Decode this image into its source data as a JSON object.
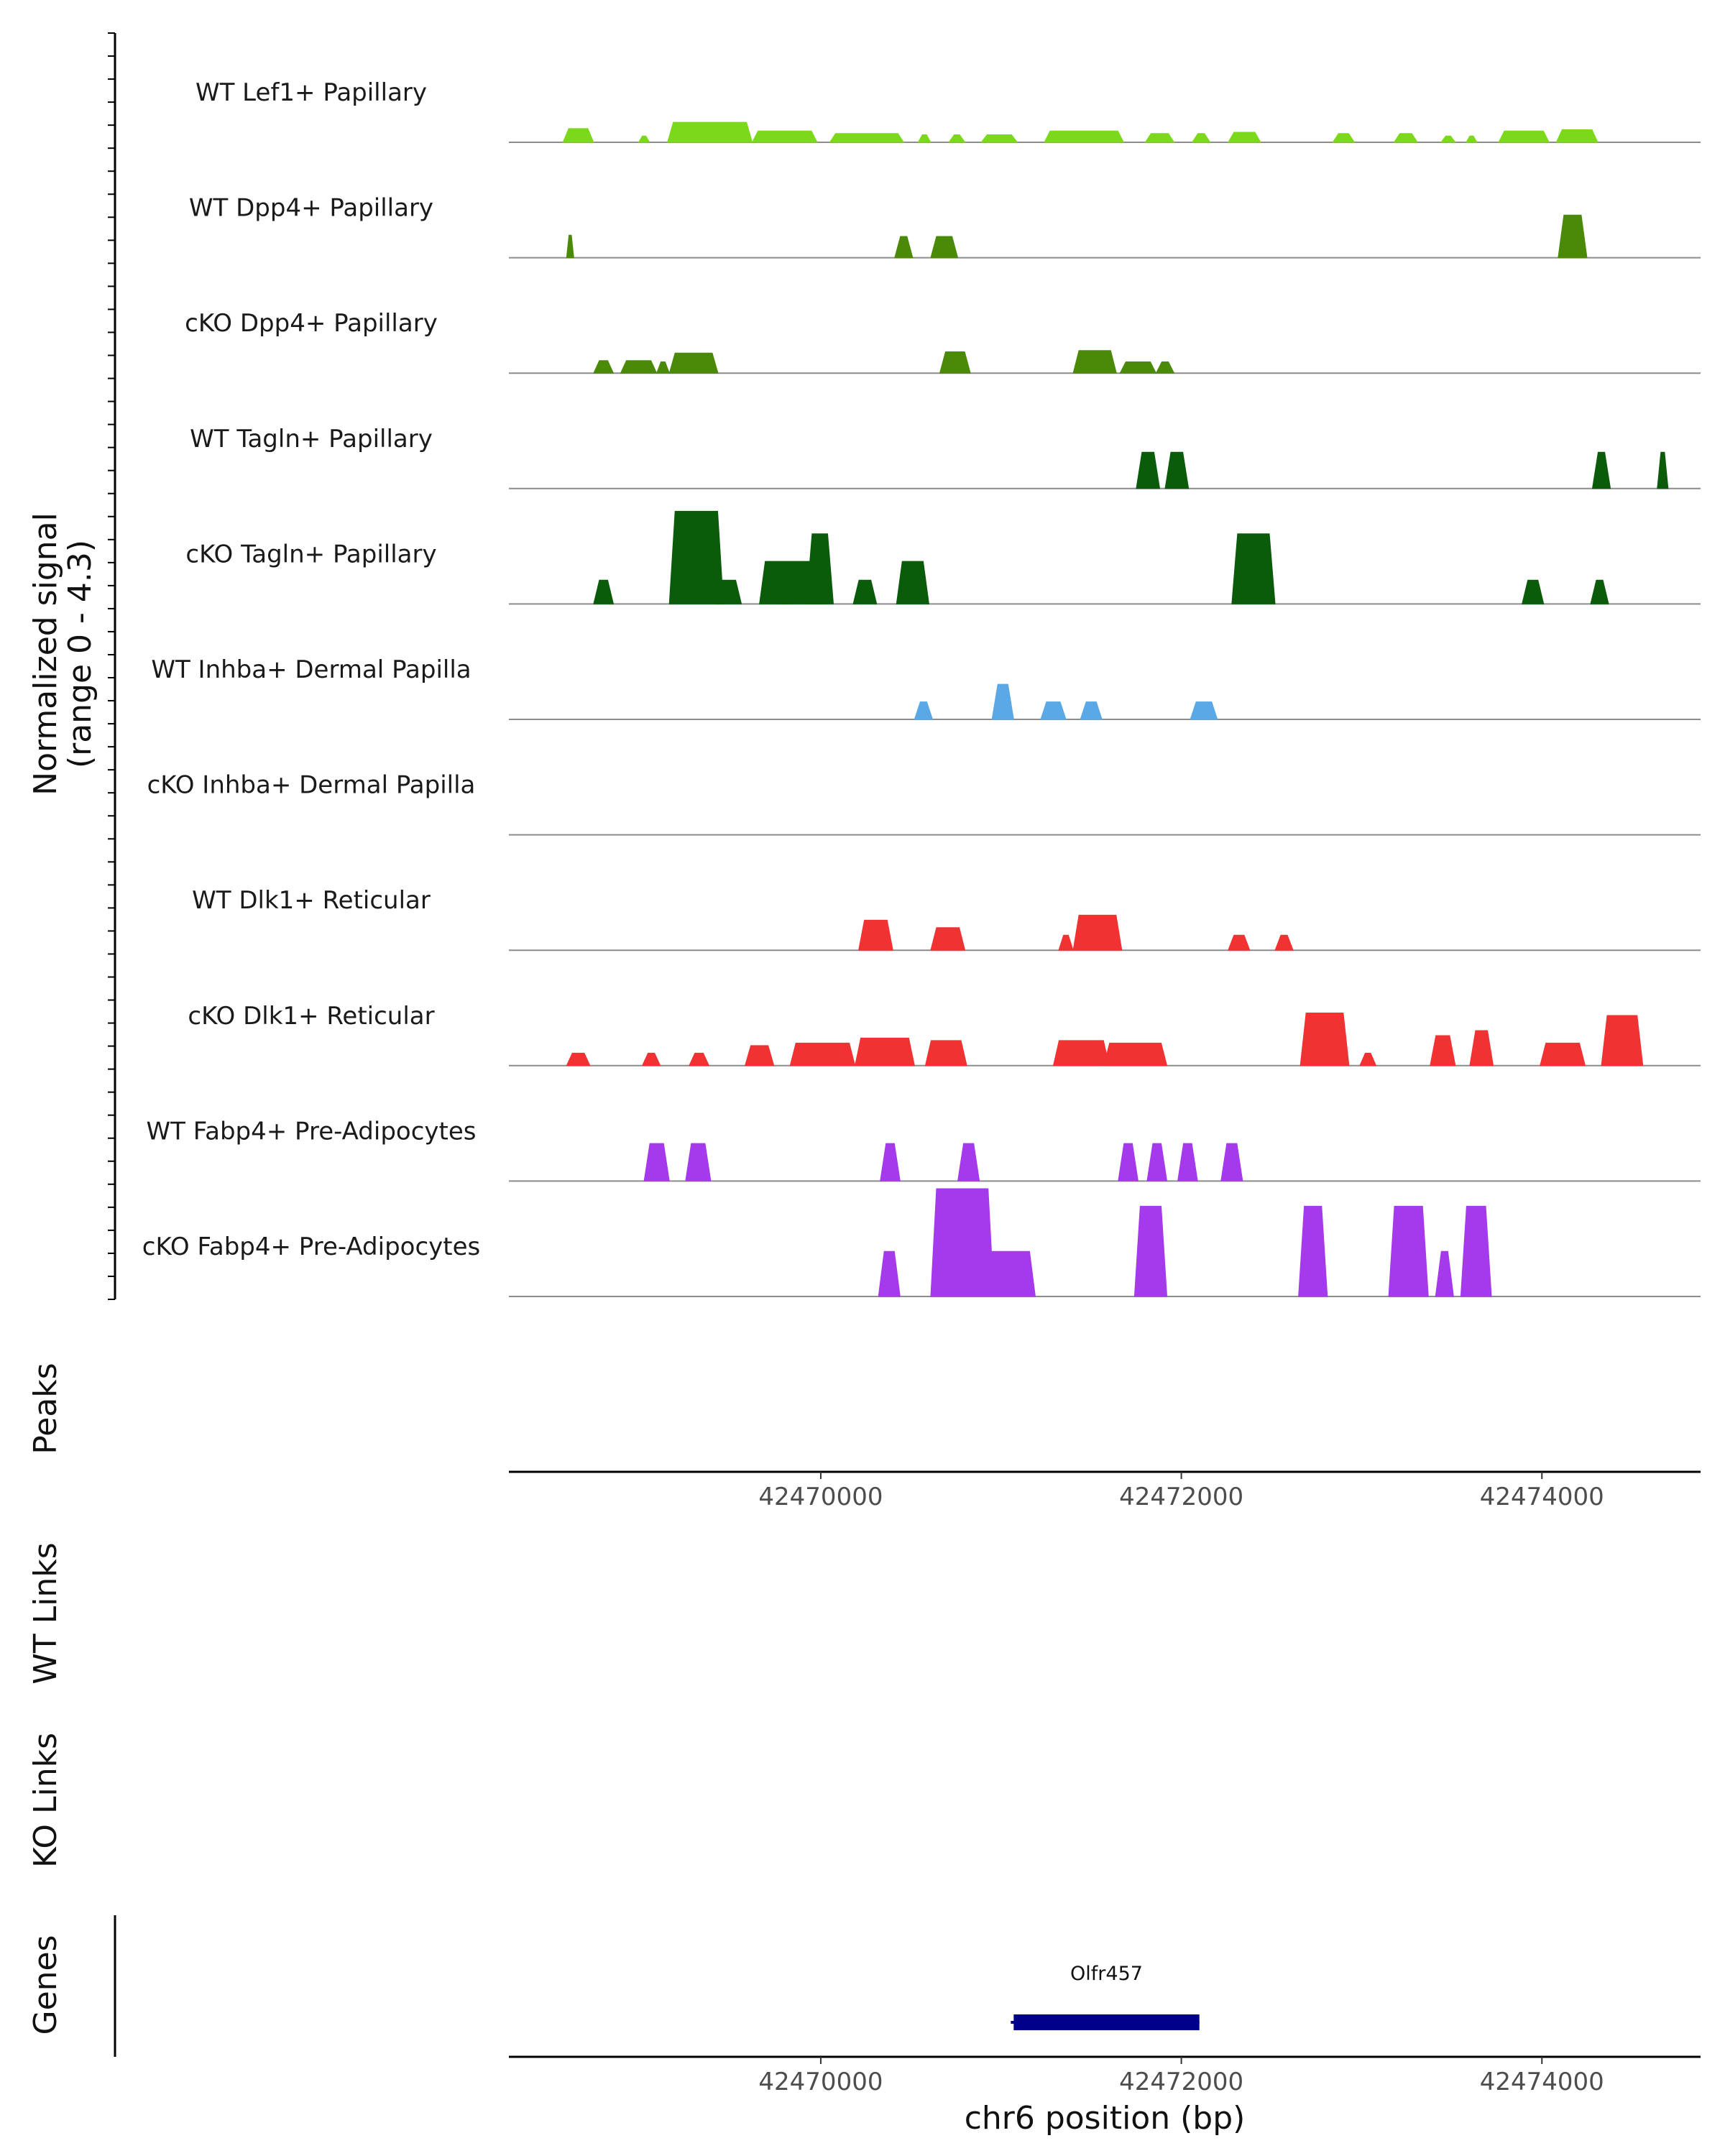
{
  "chart_data": {
    "type": "area",
    "title": "",
    "ylabel_line1": "Normalized signal",
    "ylabel_line2": "(range 0 - 4.3)",
    "y_range": [
      0,
      4.3
    ],
    "xlabel": "chr6 position (bp)",
    "x_range": [
      42468270,
      42474880
    ],
    "x_ticks": [
      42470000,
      42472000,
      42474000
    ],
    "x_tick_labels": [
      "42470000",
      "42472000",
      "42474000"
    ],
    "series": [
      {
        "name": "WT Lef1+ Papillary",
        "color": "#7cd81a",
        "peaks": [
          [
            42468570,
            42468740,
            0.55
          ],
          [
            42468990,
            42469050,
            0.25
          ],
          [
            42469150,
            42469620,
            0.8
          ],
          [
            42469620,
            42469980,
            0.45
          ],
          [
            42470050,
            42470460,
            0.35
          ],
          [
            42470540,
            42470610,
            0.3
          ],
          [
            42470710,
            42470800,
            0.3
          ],
          [
            42470890,
            42471090,
            0.3
          ],
          [
            42471240,
            42471680,
            0.45
          ],
          [
            42471800,
            42471960,
            0.35
          ],
          [
            42472060,
            42472160,
            0.35
          ],
          [
            42472260,
            42472440,
            0.4
          ],
          [
            42472840,
            42472960,
            0.35
          ],
          [
            42473180,
            42473310,
            0.35
          ],
          [
            42473440,
            42473520,
            0.25
          ],
          [
            42473580,
            42473640,
            0.25
          ],
          [
            42473760,
            42474040,
            0.45
          ],
          [
            42474080,
            42474310,
            0.5
          ]
        ]
      },
      {
        "name": "WT Dpp4+ Papillary",
        "color": "#4a8a08",
        "peaks": [
          [
            42468590,
            42468630,
            0.9
          ],
          [
            42470410,
            42470510,
            0.85
          ],
          [
            42470610,
            42470760,
            0.85
          ],
          [
            42474090,
            42474250,
            1.7
          ]
        ]
      },
      {
        "name": "cKO Dpp4+ Papillary",
        "color": "#4a8a08",
        "peaks": [
          [
            42468740,
            42468850,
            0.5
          ],
          [
            42468890,
            42469090,
            0.5
          ],
          [
            42469090,
            42469160,
            0.45
          ],
          [
            42469160,
            42469430,
            0.8
          ],
          [
            42470660,
            42470830,
            0.85
          ],
          [
            42471400,
            42471640,
            0.9
          ],
          [
            42471660,
            42471860,
            0.45
          ],
          [
            42471860,
            42471960,
            0.45
          ]
        ]
      },
      {
        "name": "WT Tagln+ Papillary",
        "color": "#0a5c0a",
        "peaks": [
          [
            42471750,
            42471880,
            1.45
          ],
          [
            42471910,
            42472040,
            1.45
          ],
          [
            42474280,
            42474380,
            1.45
          ],
          [
            42474640,
            42474700,
            1.45
          ]
        ]
      },
      {
        "name": "cKO Tagln+ Papillary",
        "color": "#0a5c0a",
        "peaks": [
          [
            42468740,
            42468850,
            0.95
          ],
          [
            42469160,
            42469460,
            3.7
          ],
          [
            42469420,
            42469560,
            0.95
          ],
          [
            42469660,
            42470030,
            1.7
          ],
          [
            42469780,
            42469820,
            1.5
          ],
          [
            42469920,
            42470070,
            2.8
          ],
          [
            42470180,
            42470310,
            0.95
          ],
          [
            42470420,
            42470600,
            1.7
          ],
          [
            42472280,
            42472520,
            2.8
          ],
          [
            42473890,
            42474010,
            0.95
          ],
          [
            42474270,
            42474370,
            0.95
          ]
        ]
      },
      {
        "name": "WT Inhba+ Dermal Papilla",
        "color": "#5aa9e6",
        "peaks": [
          [
            42470520,
            42470620,
            0.7
          ],
          [
            42470950,
            42471070,
            1.4
          ],
          [
            42471220,
            42471360,
            0.7
          ],
          [
            42471440,
            42471560,
            0.7
          ],
          [
            42472050,
            42472200,
            0.7
          ]
        ]
      },
      {
        "name": "cKO Inhba+ Dermal Papilla",
        "color": "#5aa9e6",
        "peaks": []
      },
      {
        "name": "WT Dlk1+ Reticular",
        "color": "#f03232",
        "peaks": [
          [
            42470210,
            42470400,
            1.2
          ],
          [
            42470610,
            42470800,
            0.9
          ],
          [
            42471320,
            42471400,
            0.6
          ],
          [
            42471400,
            42471670,
            1.4
          ],
          [
            42472260,
            42472380,
            0.6
          ],
          [
            42472520,
            42472620,
            0.6
          ]
        ]
      },
      {
        "name": "cKO Dlk1+ Reticular",
        "color": "#f03232",
        "peaks": [
          [
            42468590,
            42468720,
            0.5
          ],
          [
            42469010,
            42469110,
            0.5
          ],
          [
            42469270,
            42469380,
            0.5
          ],
          [
            42469580,
            42469740,
            0.8
          ],
          [
            42469830,
            42470190,
            0.9
          ],
          [
            42470190,
            42470520,
            1.1
          ],
          [
            42470580,
            42470810,
            1.0
          ],
          [
            42471290,
            42471600,
            1.0
          ],
          [
            42471570,
            42471920,
            0.9
          ],
          [
            42472660,
            42472930,
            2.1
          ],
          [
            42472990,
            42473080,
            0.5
          ],
          [
            42473380,
            42473520,
            1.2
          ],
          [
            42473600,
            42473730,
            1.4
          ],
          [
            42473990,
            42474240,
            0.9
          ],
          [
            42474330,
            42474560,
            2.0
          ]
        ]
      },
      {
        "name": "WT Fabp4+ Pre-Adipocytes",
        "color": "#a53aec",
        "peaks": [
          [
            42469020,
            42469160,
            1.5
          ],
          [
            42469250,
            42469390,
            1.5
          ],
          [
            42470330,
            42470440,
            1.5
          ],
          [
            42470760,
            42470880,
            1.5
          ],
          [
            42471650,
            42471760,
            1.5
          ],
          [
            42471810,
            42471920,
            1.5
          ],
          [
            42471980,
            42472090,
            1.5
          ],
          [
            42472220,
            42472340,
            1.5
          ]
        ]
      },
      {
        "name": "cKO Fabp4+ Pre-Adipocytes",
        "color": "#a53aec",
        "peaks": [
          [
            42470320,
            42470440,
            1.8
          ],
          [
            42470610,
            42470960,
            4.3
          ],
          [
            42470880,
            42471190,
            1.8
          ],
          [
            42471740,
            42471920,
            3.6
          ],
          [
            42472650,
            42472810,
            3.6
          ],
          [
            42473150,
            42473370,
            3.6
          ],
          [
            42473410,
            42473510,
            1.8
          ],
          [
            42473550,
            42473720,
            3.6
          ]
        ]
      }
    ],
    "genes": [
      {
        "name": "Olfr457",
        "start": 42471070,
        "end": 42472100,
        "color": "#00008b"
      }
    ]
  },
  "panels": {
    "peaks": "Peaks",
    "wt_links": "WT Links",
    "ko_links": "KO Links",
    "genes": "Genes"
  }
}
